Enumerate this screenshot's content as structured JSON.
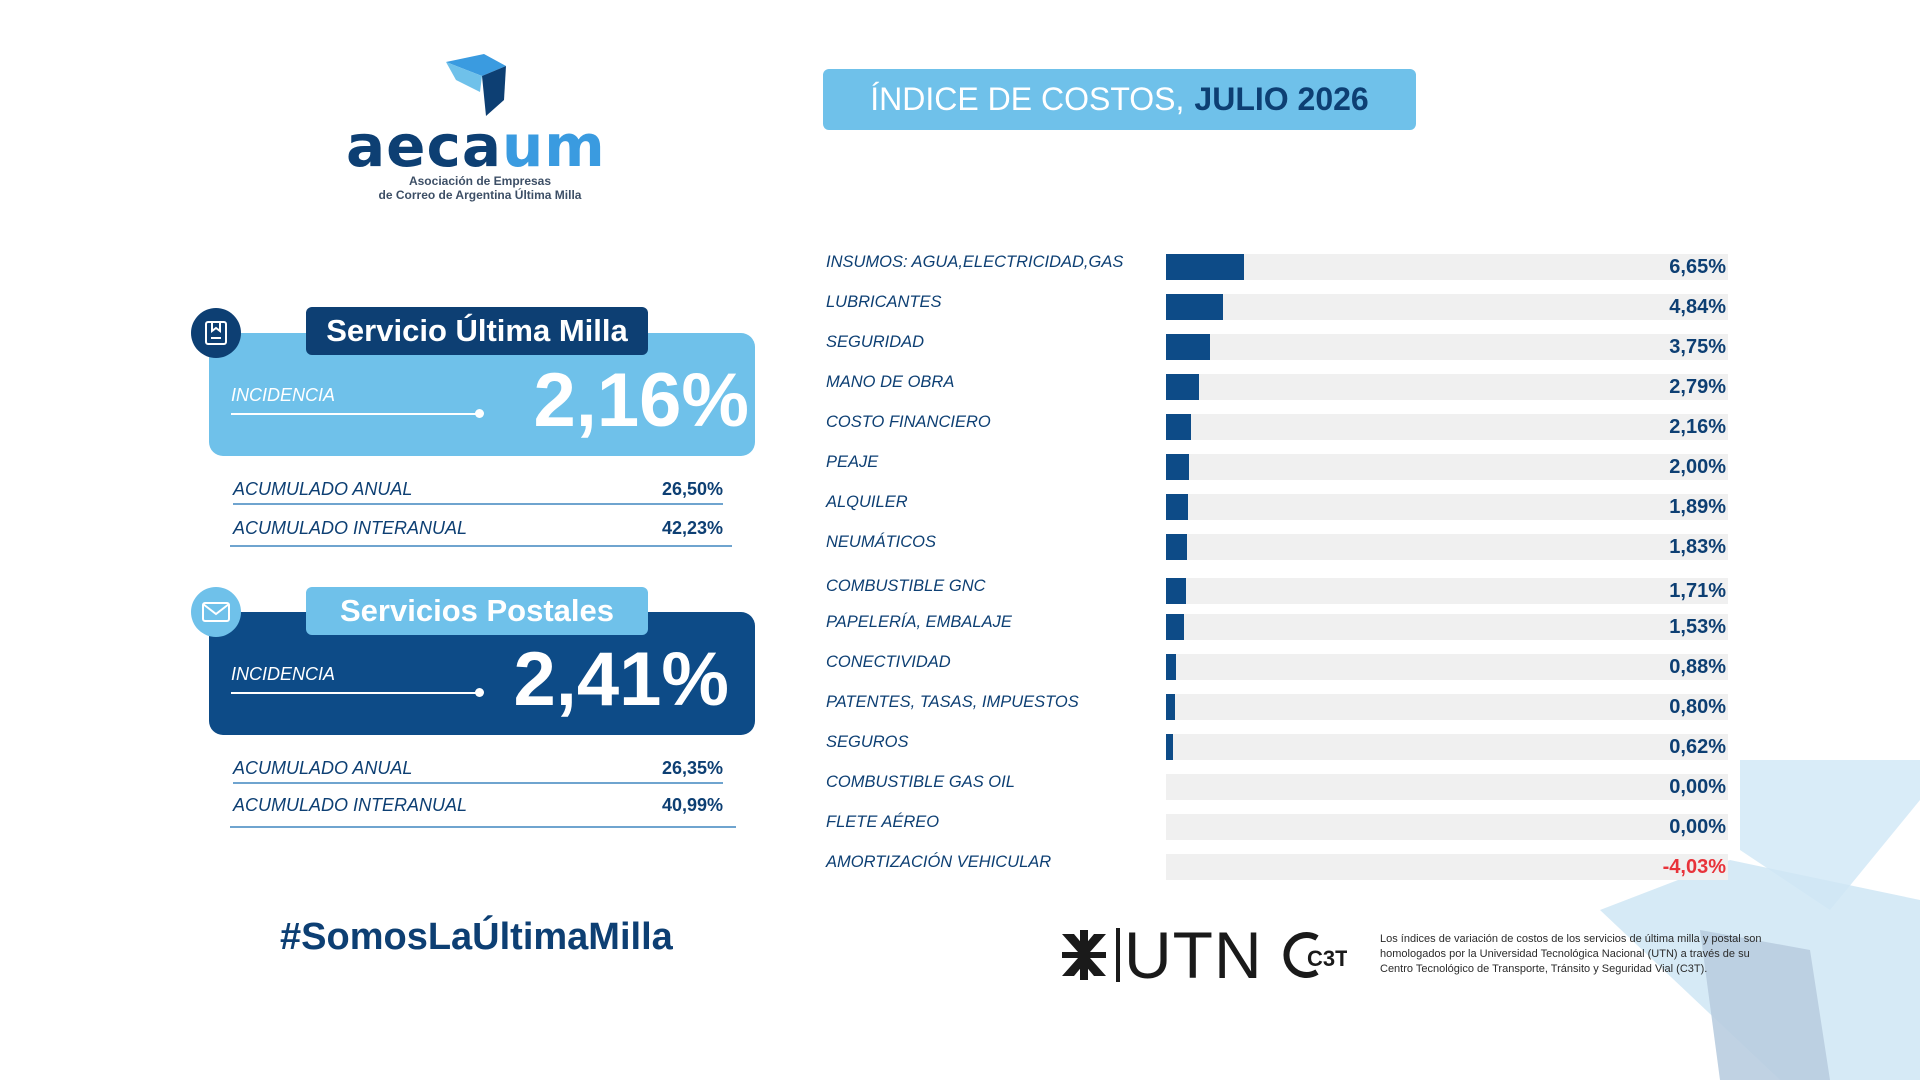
{
  "logo": {
    "wordmark_a": "aeca",
    "wordmark_b": "um",
    "subtitle_line1": "Asociación de Empresas",
    "subtitle_line2": "de Correo de Argentina Última Milla"
  },
  "header": {
    "title_prefix": "ÍNDICE DE COSTOS,",
    "title_period": "JULIO 2026"
  },
  "services": [
    {
      "name": "Servicio Última Milla",
      "incidence_label": "INCIDENCIA",
      "incidence_value": "2,16%",
      "accumulated": [
        {
          "label": "ACUMULADO ANUAL",
          "value": "26,50%"
        },
        {
          "label": "ACUMULADO INTERANUAL",
          "value": "42,23%"
        }
      ],
      "icon": "package-icon"
    },
    {
      "name": "Servicios Postales",
      "incidence_label": "INCIDENCIA",
      "incidence_value": "2,41%",
      "accumulated": [
        {
          "label": "ACUMULADO ANUAL",
          "value": "26,35%"
        },
        {
          "label": "ACUMULADO INTERANUAL",
          "value": "40,99%"
        }
      ],
      "icon": "envelope-icon"
    }
  ],
  "hashtag": "#SomosLaÚltimaMilla",
  "chart_data": {
    "type": "bar",
    "orientation": "horizontal",
    "categories": [
      "INSUMOS: AGUA,ELECTRICIDAD,GAS",
      "LUBRICANTES",
      "SEGURIDAD",
      "MANO DE OBRA",
      "COSTO FINANCIERO",
      "PEAJE",
      "ALQUILER",
      "NEUMÁTICOS",
      "COMBUSTIBLE GNC",
      "PAPELERÍA, EMBALAJE",
      "CONECTIVIDAD",
      "PATENTES, TASAS, IMPUESTOS",
      "SEGUROS",
      "COMBUSTIBLE GAS OIL",
      "FLETE AÉREO",
      "AMORTIZACIÓN VEHICULAR"
    ],
    "values": [
      6.65,
      4.84,
      3.75,
      2.79,
      2.16,
      2.0,
      1.89,
      1.83,
      1.71,
      1.53,
      0.88,
      0.8,
      0.62,
      0.0,
      0.0,
      -4.03
    ],
    "value_labels": [
      "6,65%",
      "4,84%",
      "3,75%",
      "2,79%",
      "2,16%",
      "2,00%",
      "1,89%",
      "1,83%",
      "1,71%",
      "1,53%",
      "0,88%",
      "0,80%",
      "0,62%",
      "0,00%",
      "0,00%",
      "-4,03%"
    ],
    "xlim": [
      0,
      48
    ],
    "grid": false,
    "legend": "none"
  },
  "footer": {
    "utn_label": "UTN",
    "c3t_label": "C3T",
    "note": "Los índices de variación de costos de los servicios de última milla y postal son homologados por la Universidad Tecnológica Nacional (UTN) a través de su Centro Tecnológico de Transporte, Tránsito y Seguridad Vial (C3T)."
  },
  "colors": {
    "navy": "#0d3f73",
    "light_blue": "#6fc1ea",
    "bar": "#0d4b87",
    "negative": "#e8333a",
    "track": "#f0f0f0"
  }
}
